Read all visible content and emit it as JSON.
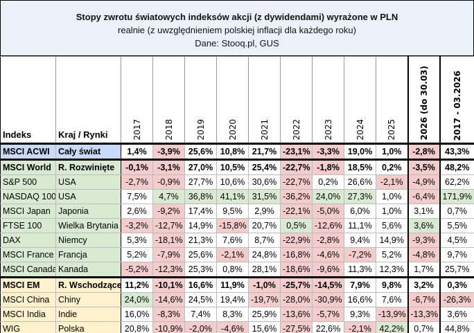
{
  "title": {
    "line1": "Stopy zwrotu światowych indeksów akcji (z dywidendami) wyrażone w PLN",
    "line2": "realnie (z uwzględnieniem polskiej inflacji dla każdego roku)",
    "line3": "Dane: Stooq.pl, GUS"
  },
  "headers": {
    "index": "Indeks",
    "region": "Kraj / Rynki",
    "years": [
      "2017",
      "2018",
      "2019",
      "2020",
      "2021",
      "2022",
      "2023",
      "2024",
      "2025",
      "2026 (do 30.03)",
      "2017 - 03.2026"
    ]
  },
  "colors": {
    "negative": "#f4cccc",
    "positive_highlight": "#d9ead3",
    "world": "#c9daf8",
    "developed": "#d9ead3",
    "emerging": "#fff2cc"
  },
  "rows": [
    {
      "index": "MSCI ACWI",
      "region": "Cały świat",
      "group": "acwi",
      "bold": true,
      "values": [
        "1,4%",
        "-3,9%",
        "25,6%",
        "10,8%",
        "21,7%",
        "-23,1%",
        "-3,3%",
        "19,0%",
        "1,0%",
        "-2,8%",
        "43,3%"
      ],
      "fill": [
        "",
        "r",
        "",
        "",
        "",
        "r",
        "r",
        "",
        "",
        "r",
        ""
      ]
    },
    {
      "index": "MSCI World",
      "region": "R. Rozwinięte",
      "group": "dev",
      "bold": true,
      "values": [
        "-0,1%",
        "-3,1%",
        "27,0%",
        "10,5%",
        "25,4%",
        "-22,7%",
        "-1,8%",
        "18,5%",
        "0,2%",
        "-3,5%",
        "48,2%"
      ],
      "fill": [
        "r",
        "r",
        "",
        "",
        "",
        "r",
        "r",
        "",
        "",
        "r",
        ""
      ]
    },
    {
      "index": "S&P 500",
      "region": "USA",
      "group": "dev",
      "values": [
        "-2,7%",
        "-0,9%",
        "27,7%",
        "10,6%",
        "30,6%",
        "-22,7%",
        "0,2%",
        "26,6%",
        "-2,1%",
        "-4,9%",
        "62,2%"
      ],
      "fill": [
        "r",
        "r",
        "",
        "",
        "",
        "r",
        "",
        "",
        "r",
        "r",
        ""
      ]
    },
    {
      "index": "NASDAQ 100",
      "region": "USA",
      "group": "dev",
      "values": [
        "7,5%",
        "4,7%",
        "36,8%",
        "41,1%",
        "31,5%",
        "-36,2%",
        "24,0%",
        "27,3%",
        "1,0%",
        "-6,4%",
        "171,9%"
      ],
      "fill": [
        "",
        "g",
        "g",
        "g",
        "g",
        "r",
        "g",
        "g",
        "",
        "r",
        "g"
      ]
    },
    {
      "index": "MSCI Japan",
      "region": "Japonia",
      "group": "dev",
      "values": [
        "2,6%",
        "-9,2%",
        "17,4%",
        "9,5%",
        "2,9%",
        "-22,1%",
        "-5,0%",
        "6,0%",
        "1,0%",
        "3,1%",
        "0,7%"
      ],
      "fill": [
        "",
        "r",
        "",
        "",
        "",
        "r",
        "r",
        "",
        "",
        "",
        ""
      ]
    },
    {
      "index": "FTSE 100",
      "region": "Wielka Brytania",
      "group": "dev",
      "values": [
        "-3,2%",
        "-12,7%",
        "14,9%",
        "-15,8%",
        "20,7%",
        "0,5%",
        "-12,6%",
        "11,1%",
        "5,6%",
        "3,6%",
        "5,5%"
      ],
      "fill": [
        "r",
        "r",
        "",
        "r",
        "",
        "g",
        "r",
        "",
        "",
        "g",
        ""
      ]
    },
    {
      "index": "DAX",
      "region": "Niemcy",
      "group": "dev",
      "values": [
        "5,3%",
        "-18,1%",
        "21,3%",
        "7,6%",
        "8,7%",
        "-22,9%",
        "-2,8%",
        "9,4%",
        "14,9%",
        "-9,3%",
        "4,5%"
      ],
      "fill": [
        "",
        "r",
        "",
        "",
        "",
        "r",
        "r",
        "",
        "",
        "r",
        ""
      ]
    },
    {
      "index": "MSCI France",
      "region": "Francja",
      "group": "dev",
      "values": [
        "5,2%",
        "-7,9%",
        "25,6%",
        "-2,1%",
        "24,8%",
        "-16,8%",
        "-4,6%",
        "-7,2%",
        "5,2%",
        "-4,8%",
        "9,7%"
      ],
      "fill": [
        "",
        "r",
        "",
        "r",
        "",
        "r",
        "r",
        "r",
        "",
        "r",
        ""
      ]
    },
    {
      "index": "MSCI Canada",
      "region": "Kanada",
      "group": "dev",
      "sep": true,
      "values": [
        "-5,2%",
        "-12,3%",
        "25,3%",
        "0,8%",
        "28,1%",
        "-18,6%",
        "-9,6%",
        "11,3%",
        "12,3%",
        "1,7%",
        "25,7%"
      ],
      "fill": [
        "r",
        "r",
        "",
        "",
        "",
        "r",
        "r",
        "",
        "",
        "",
        ""
      ]
    },
    {
      "index": "MSCI EM",
      "region": "R. Wschodzące",
      "group": "em",
      "bold": true,
      "values": [
        "11,2%",
        "-10,1%",
        "16,6%",
        "11,9%",
        "-1,0%",
        "-25,7%",
        "-14,5%",
        "7,9%",
        "9,8%",
        "3,2%",
        "0,3%"
      ],
      "fill": [
        "",
        "r",
        "",
        "",
        "r",
        "r",
        "r",
        "",
        "",
        "",
        ""
      ]
    },
    {
      "index": "MSCI China",
      "region": "Chiny",
      "group": "em",
      "values": [
        "24,0%",
        "-14,6%",
        "24,5%",
        "19,4%",
        "-19,7%",
        "-28,0%",
        "-30,9%",
        "16,6%",
        "7,6%",
        "-6,7%",
        "-26,3%"
      ],
      "fill": [
        "g",
        "r",
        "",
        "",
        "r",
        "r",
        "r",
        "",
        "",
        "r",
        "r"
      ]
    },
    {
      "index": "MSCI India",
      "region": "Indie",
      "group": "em",
      "values": [
        "16,0%",
        "-8,3%",
        "7,4%",
        "8,3%",
        "25,9%",
        "-13,6%",
        "-5,7%",
        "9,3%",
        "-13,9%",
        "-13,3%",
        "3,6%"
      ],
      "fill": [
        "",
        "r",
        "",
        "",
        "",
        "r",
        "r",
        "",
        "r",
        "r",
        ""
      ]
    },
    {
      "index": "WIG",
      "region": "Polska",
      "group": "em",
      "values": [
        "20,8%",
        "-10,9%",
        "-2,0%",
        "-4,6%",
        "15,6%",
        "-27,5%",
        "22,6%",
        "-2,1%",
        "42,2%",
        "0,7%",
        "44,8%"
      ],
      "fill": [
        "",
        "r",
        "r",
        "r",
        "",
        "r",
        "",
        "r",
        "g",
        "",
        ""
      ]
    }
  ]
}
